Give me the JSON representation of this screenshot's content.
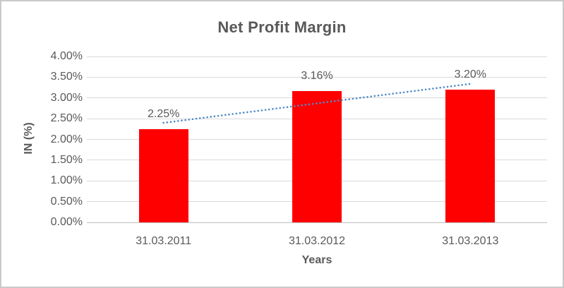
{
  "chart_data": {
    "type": "bar",
    "title": "Net Profit Margin",
    "categories": [
      "31.03.2011",
      "31.03.2012",
      "31.03.2013"
    ],
    "values": [
      2.25,
      3.16,
      3.2
    ],
    "data_labels": [
      "2.25%",
      "3.16%",
      "3.20%"
    ],
    "xlabel": "Years",
    "ylabel": "IN (%)",
    "ylim": [
      0,
      4
    ],
    "ytick_step": 0.5,
    "yticks": [
      0,
      0.5,
      1,
      1.5,
      2,
      2.5,
      3,
      3.5,
      4
    ],
    "ytick_labels": [
      "0.00%",
      "0.50%",
      "1.00%",
      "1.50%",
      "2.00%",
      "2.50%",
      "3.00%",
      "3.50%",
      "4.00%"
    ],
    "grid": true,
    "legend": "none",
    "trendline": {
      "type": "linear",
      "style": "dotted",
      "start_value": 2.4,
      "end_value": 3.34
    },
    "colors": {
      "bar": "#ff0000",
      "trendline": "#4e8ac8",
      "title": "#595959",
      "labels": "#595959",
      "gridline": "#d9d9d9",
      "axis_line": "#bfbfbf",
      "figure_border": "#c9c9c9"
    }
  }
}
